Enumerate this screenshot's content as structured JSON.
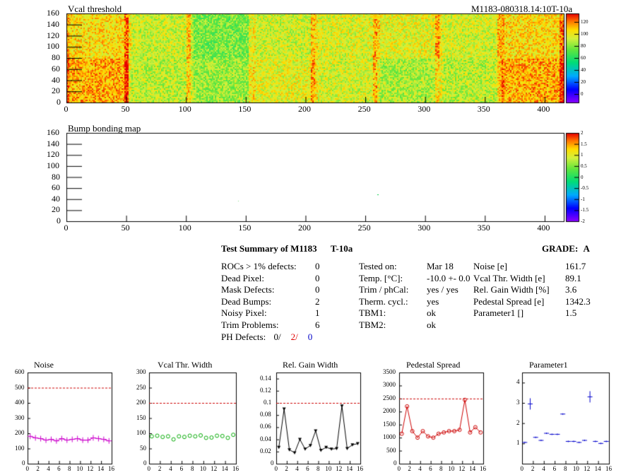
{
  "heatmap": {
    "title": "Vcal threshold",
    "module_id": "M1183-080318.14:10T-10a",
    "y_ticks": [
      0,
      20,
      40,
      60,
      80,
      100,
      120,
      140,
      160
    ],
    "x_ticks": [
      0,
      50,
      100,
      150,
      200,
      250,
      300,
      350,
      400
    ],
    "colorbar_ticks": [
      "120",
      "100",
      "80",
      "60",
      "40",
      "20",
      "0"
    ]
  },
  "bump_map": {
    "title": "Bump bonding map",
    "y_ticks": [
      0,
      20,
      40,
      60,
      80,
      100,
      120,
      140,
      160
    ],
    "x_ticks": [
      0,
      50,
      100,
      150,
      200,
      250,
      300,
      350,
      400
    ],
    "colorbar_ticks": [
      "2",
      "1.5",
      "1",
      "0.5",
      "0",
      "-0.5",
      "-1",
      "-1.5",
      "-2"
    ]
  },
  "summary": {
    "title": "Test Summary of M1183",
    "test": "T-10a",
    "grade_label": "GRADE:",
    "grade": "A",
    "left_rows": [
      {
        "label": "ROCs > 1% defects:",
        "value": "0"
      },
      {
        "label": "Dead Pixel:",
        "value": "0"
      },
      {
        "label": "Mask Defects:",
        "value": "0"
      },
      {
        "label": "Dead Bumps:",
        "value": "2"
      },
      {
        "label": "Noisy Pixel:",
        "value": "1"
      },
      {
        "label": "Trim Problems:",
        "value": "6"
      }
    ],
    "ph_label": "PH Defects:",
    "ph_values": [
      {
        "text": "0/",
        "color": "#000000"
      },
      {
        "text": "2/",
        "color": "#e00000"
      },
      {
        "text": "0",
        "color": "#0000c8"
      }
    ],
    "mid_rows": [
      {
        "label": "Tested on:",
        "value": "Mar 18"
      },
      {
        "label": "Temp. [°C]:",
        "value": "-10.0 +- 0.0"
      },
      {
        "label": "Trim / phCal:",
        "value": "yes / yes"
      },
      {
        "label": "Therm. cycl.:",
        "value": "yes"
      },
      {
        "label": "TBM1:",
        "value": "ok"
      },
      {
        "label": "TBM2:",
        "value": "ok"
      }
    ],
    "right_rows": [
      {
        "label": "Noise [e]",
        "value": "161.7"
      },
      {
        "label": "Vcal Thr. Width [e]",
        "value": "89.1"
      },
      {
        "label": "Rel. Gain Width [%]",
        "value": "3.6"
      },
      {
        "label": "Pedestal Spread [e]",
        "value": "1342.3"
      },
      {
        "label": "Parameter1 []",
        "value": "1.5"
      }
    ]
  },
  "chart_data": [
    {
      "type": "scatter",
      "title": "Noise",
      "color": "#cc00cc",
      "marker": "plus",
      "x": [
        0,
        1,
        2,
        3,
        4,
        5,
        6,
        7,
        8,
        9,
        10,
        11,
        12,
        13,
        14,
        15
      ],
      "values": [
        180,
        170,
        165,
        155,
        160,
        150,
        165,
        155,
        160,
        165,
        155,
        155,
        170,
        165,
        160,
        150
      ],
      "threshold": 500,
      "ylim": [
        0,
        600
      ],
      "y_ticks": [
        0,
        100,
        200,
        300,
        400,
        500,
        600
      ],
      "x_ticks": [
        0,
        2,
        4,
        6,
        8,
        10,
        12,
        14,
        16
      ],
      "line": false
    },
    {
      "type": "scatter",
      "title": "Vcal Thr. Width",
      "color": "#00aa00",
      "marker": "circle",
      "x": [
        0,
        1,
        2,
        3,
        4,
        5,
        6,
        7,
        8,
        9,
        10,
        11,
        12,
        13,
        14,
        15
      ],
      "values": [
        90,
        92,
        88,
        90,
        80,
        90,
        88,
        92,
        90,
        93,
        85,
        86,
        92,
        91,
        85,
        95
      ],
      "threshold": 200,
      "ylim": [
        0,
        300
      ],
      "y_ticks": [
        0,
        50,
        100,
        150,
        200,
        250,
        300
      ],
      "x_ticks": [
        0,
        2,
        4,
        6,
        8,
        10,
        12,
        14,
        16
      ],
      "line": false
    },
    {
      "type": "line",
      "title": "Rel. Gain Width",
      "color": "#000000",
      "marker": "triangle",
      "x": [
        0,
        1,
        2,
        3,
        4,
        5,
        6,
        7,
        8,
        9,
        10,
        11,
        12,
        13,
        14,
        15
      ],
      "values": [
        0.027,
        0.09,
        0.023,
        0.018,
        0.04,
        0.024,
        0.03,
        0.054,
        0.022,
        0.027,
        0.024,
        0.025,
        0.095,
        0.025,
        0.031,
        0.033
      ],
      "threshold": 0.1,
      "ylim": [
        0,
        0.15
      ],
      "y_ticks": [
        0,
        0.02,
        0.04,
        0.06,
        0.08,
        0.1,
        0.12,
        0.14
      ],
      "x_ticks": [
        0,
        2,
        4,
        6,
        8,
        10,
        12,
        14,
        16
      ],
      "line": true
    },
    {
      "type": "line",
      "title": "Pedestal Spread",
      "color": "#cc0000",
      "marker": "circle",
      "x": [
        0,
        1,
        2,
        3,
        4,
        5,
        6,
        7,
        8,
        9,
        10,
        11,
        12,
        13,
        14,
        15
      ],
      "values": [
        1150,
        2200,
        1250,
        1000,
        1250,
        1050,
        1000,
        1150,
        1200,
        1250,
        1250,
        1300,
        2450,
        1200,
        1400,
        1200
      ],
      "threshold": 2500,
      "ylim": [
        0,
        3500
      ],
      "y_ticks": [
        0,
        500,
        1000,
        1500,
        2000,
        2500,
        3000,
        3500
      ],
      "x_ticks": [
        0,
        2,
        4,
        6,
        8,
        10,
        12,
        14,
        16
      ],
      "line": true
    },
    {
      "type": "scatter",
      "title": "Parameter1",
      "color": "#0000cc",
      "marker": "errorbar",
      "x": [
        0,
        1,
        2,
        3,
        4,
        5,
        6,
        7,
        8,
        9,
        10,
        11,
        12,
        13,
        14,
        15
      ],
      "values": [
        1.05,
        2.95,
        1.3,
        1.15,
        1.5,
        1.45,
        1.45,
        2.45,
        1.1,
        1.1,
        1.05,
        1.15,
        3.3,
        1.1,
        1.0,
        1.1
      ],
      "threshold": null,
      "ylim": [
        0,
        4.5
      ],
      "y_ticks": [
        1,
        2,
        3,
        4
      ],
      "x_ticks": [
        0,
        2,
        4,
        6,
        8,
        10,
        12,
        14,
        16
      ],
      "line": false
    }
  ]
}
